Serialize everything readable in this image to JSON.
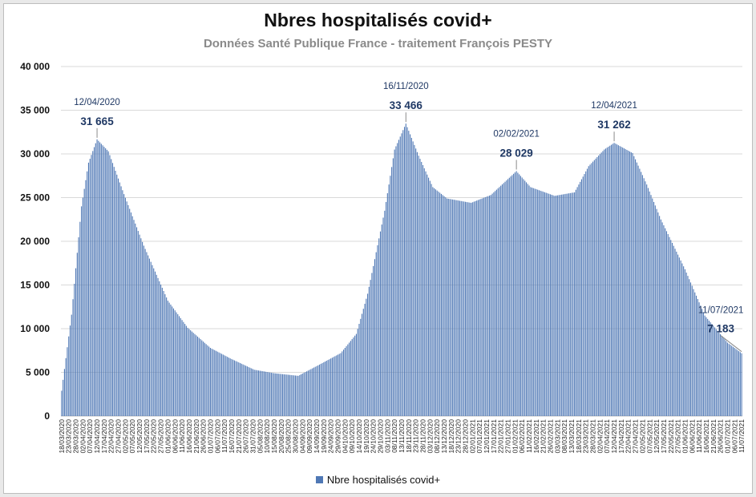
{
  "chart_data": {
    "type": "bar",
    "title": "Nbres hospitalisés covid+",
    "subtitle": "Données Santé Publique France - traitement François PESTY",
    "series_name": "Nbre hospitalisés covid+",
    "bar_color": "#4f78b5",
    "ylim": [
      0,
      40000
    ],
    "yticks": [
      0,
      5000,
      10000,
      15000,
      20000,
      25000,
      30000,
      35000,
      40000
    ],
    "ytick_labels": [
      "0",
      "5 000",
      "10 000",
      "15 000",
      "20 000",
      "25 000",
      "30 000",
      "35 000",
      "40 000"
    ],
    "x_start": "2020-03-18",
    "x_end": "2021-07-11",
    "x_tick_step_days": 5,
    "key_points": [
      {
        "date": "2020-03-18",
        "value": 2900
      },
      {
        "date": "2020-03-25",
        "value": 11600
      },
      {
        "date": "2020-04-01",
        "value": 24000
      },
      {
        "date": "2020-04-06",
        "value": 29000
      },
      {
        "date": "2020-04-12",
        "value": 31665
      },
      {
        "date": "2020-04-20",
        "value": 30300
      },
      {
        "date": "2020-05-01",
        "value": 25400
      },
      {
        "date": "2020-05-15",
        "value": 19500
      },
      {
        "date": "2020-06-01",
        "value": 13200
      },
      {
        "date": "2020-06-15",
        "value": 10100
      },
      {
        "date": "2020-07-01",
        "value": 7800
      },
      {
        "date": "2020-07-15",
        "value": 6600
      },
      {
        "date": "2020-08-01",
        "value": 5300
      },
      {
        "date": "2020-08-15",
        "value": 4900
      },
      {
        "date": "2020-09-01",
        "value": 4600
      },
      {
        "date": "2020-09-15",
        "value": 5800
      },
      {
        "date": "2020-10-01",
        "value": 7200
      },
      {
        "date": "2020-10-12",
        "value": 9400
      },
      {
        "date": "2020-10-20",
        "value": 14000
      },
      {
        "date": "2020-11-01",
        "value": 23500
      },
      {
        "date": "2020-11-08",
        "value": 30500
      },
      {
        "date": "2020-11-16",
        "value": 33466
      },
      {
        "date": "2020-11-25",
        "value": 29800
      },
      {
        "date": "2020-12-05",
        "value": 26200
      },
      {
        "date": "2020-12-15",
        "value": 24900
      },
      {
        "date": "2021-01-01",
        "value": 24400
      },
      {
        "date": "2021-01-15",
        "value": 25300
      },
      {
        "date": "2021-02-02",
        "value": 28029
      },
      {
        "date": "2021-02-12",
        "value": 26200
      },
      {
        "date": "2021-03-01",
        "value": 25200
      },
      {
        "date": "2021-03-15",
        "value": 25600
      },
      {
        "date": "2021-03-25",
        "value": 28600
      },
      {
        "date": "2021-04-05",
        "value": 30500
      },
      {
        "date": "2021-04-12",
        "value": 31262
      },
      {
        "date": "2021-04-25",
        "value": 30100
      },
      {
        "date": "2021-05-05",
        "value": 26500
      },
      {
        "date": "2021-05-15",
        "value": 22500
      },
      {
        "date": "2021-06-01",
        "value": 16800
      },
      {
        "date": "2021-06-15",
        "value": 11500
      },
      {
        "date": "2021-07-01",
        "value": 8400
      },
      {
        "date": "2021-07-11",
        "value": 7183
      }
    ],
    "annotations": [
      {
        "date": "2020-04-12",
        "date_label": "12/04/2020",
        "value": 31665,
        "value_label": "31 665"
      },
      {
        "date": "2020-11-16",
        "date_label": "16/11/2020",
        "value": 33466,
        "value_label": "33 466"
      },
      {
        "date": "2021-02-02",
        "date_label": "02/02/2021",
        "value": 28029,
        "value_label": "28 029"
      },
      {
        "date": "2021-04-12",
        "date_label": "12/04/2021",
        "value": 31262,
        "value_label": "31 262"
      },
      {
        "date": "2021-07-11",
        "date_label": "11/07/2021",
        "value": 7183,
        "value_label": "7 183"
      }
    ],
    "grid": "horizontal",
    "legend": "bottom"
  }
}
